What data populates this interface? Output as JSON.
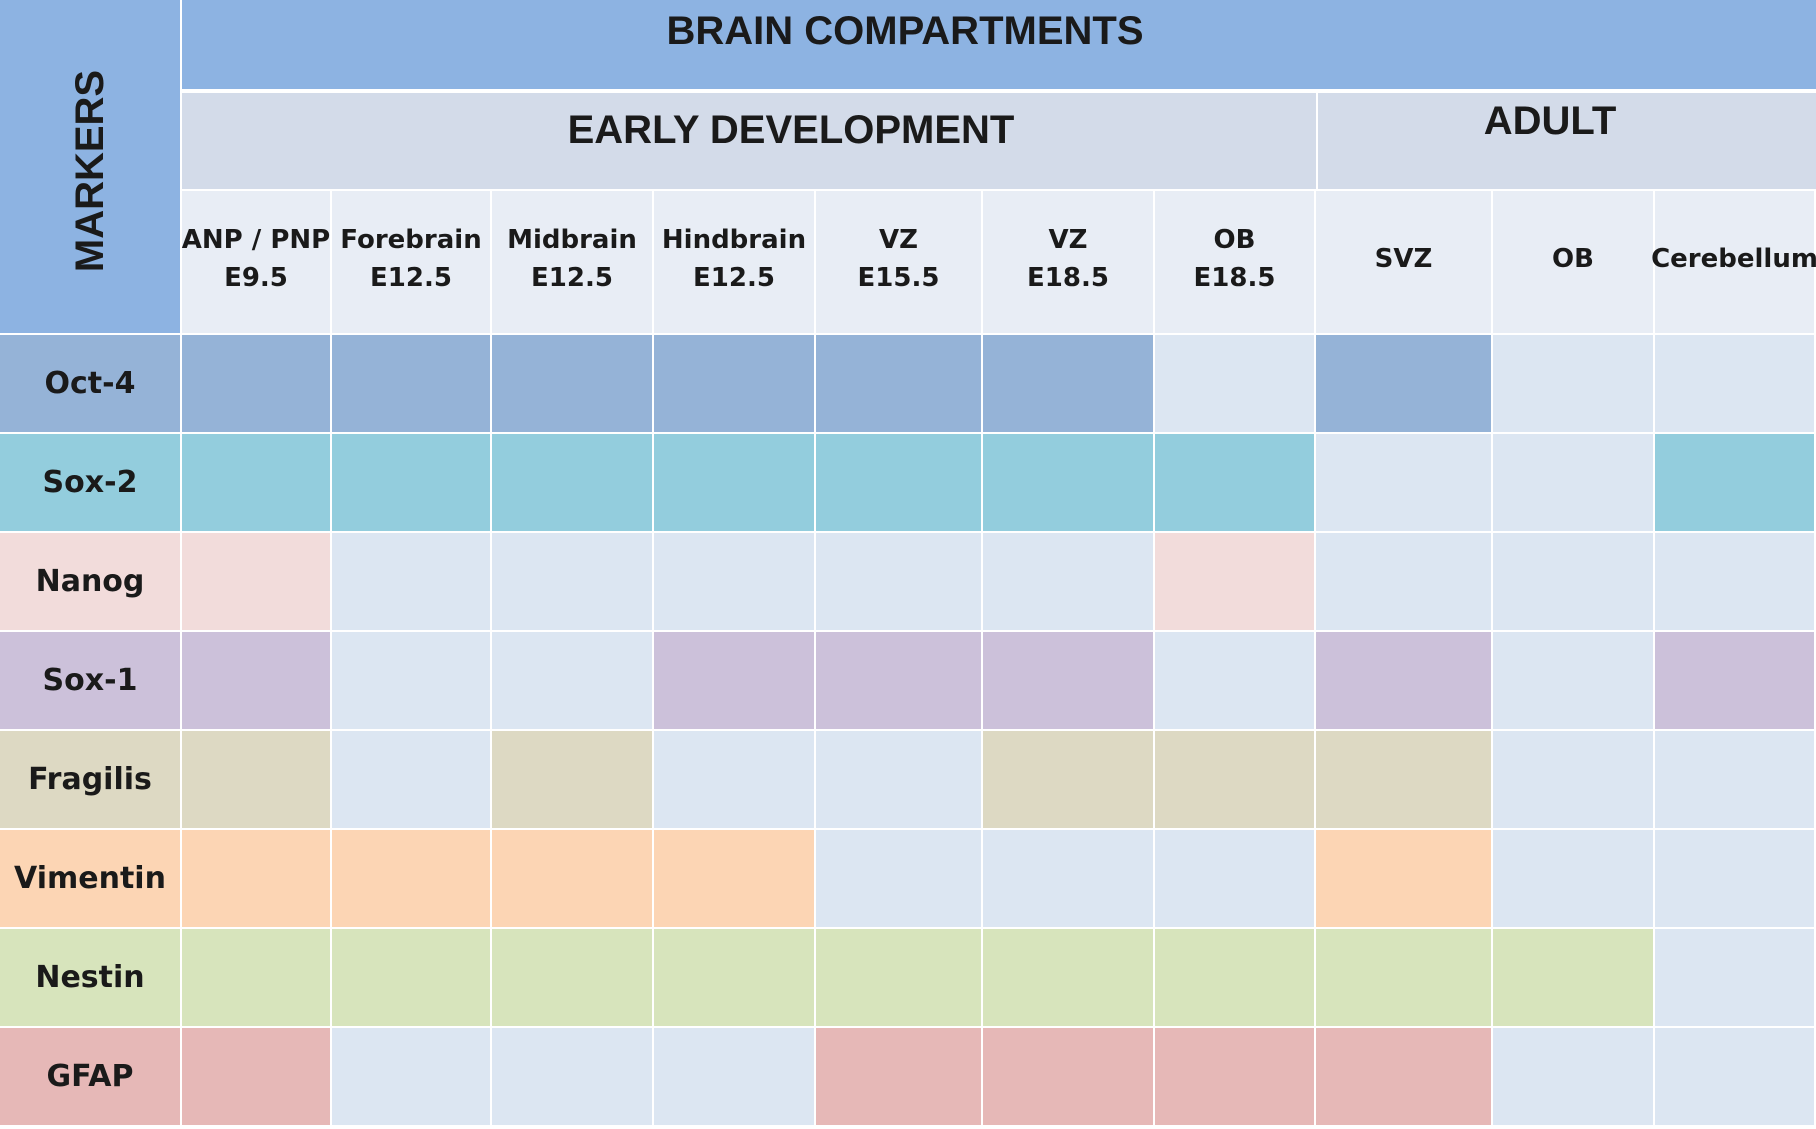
{
  "title": "BRAIN COMPARTMENTS",
  "markers_label": "MARKERS",
  "groups": [
    {
      "label": "EARLY DEVELOPMENT"
    },
    {
      "label": "ADULT"
    }
  ],
  "columns": [
    {
      "line1": "ANP / PNP",
      "line2": "E9.5"
    },
    {
      "line1": "Forebrain",
      "line2": "E12.5"
    },
    {
      "line1": "Midbrain",
      "line2": "E12.5"
    },
    {
      "line1": "Hindbrain",
      "line2": "E12.5"
    },
    {
      "line1": "VZ",
      "line2": "E15.5"
    },
    {
      "line1": "VZ",
      "line2": "E18.5"
    },
    {
      "line1": "OB",
      "line2": "E18.5"
    },
    {
      "line1": "SVZ",
      "line2": ""
    },
    {
      "line1": "OB",
      "line2": ""
    },
    {
      "line1": "Cerebellum",
      "line2": ""
    }
  ],
  "colors": {
    "header_blue": "#8db3e2",
    "group_gray": "#d3dbe9",
    "column_header": "#e8edf5",
    "empty_cell": "#dce6f2"
  },
  "rows": [
    {
      "name": "Oct-4",
      "color": "#95b3d7",
      "label_color": "#95b3d7",
      "expr": [
        1,
        1,
        1,
        1,
        1,
        1,
        0,
        1,
        0,
        0
      ]
    },
    {
      "name": "Sox-2",
      "color": "#93cddd",
      "label_color": "#93cddd",
      "expr": [
        1,
        1,
        1,
        1,
        1,
        1,
        1,
        0,
        0,
        1
      ]
    },
    {
      "name": "Nanog",
      "color": "#f2dcdb",
      "label_color": "#f2dcdb",
      "expr": [
        1,
        0,
        0,
        0,
        0,
        0,
        1,
        0,
        0,
        0
      ]
    },
    {
      "name": "Sox-1",
      "color": "#ccc1da",
      "label_color": "#ccc1da",
      "expr": [
        1,
        0,
        0,
        1,
        1,
        1,
        0,
        1,
        0,
        1
      ]
    },
    {
      "name": "Fragilis",
      "color": "#ddd9c3",
      "label_color": "#ddd9c3",
      "expr": [
        1,
        0,
        1,
        0,
        0,
        1,
        1,
        1,
        0,
        0
      ]
    },
    {
      "name": "Vimentin",
      "color": "#fcd5b4",
      "label_color": "#fcd5b4",
      "expr": [
        1,
        1,
        1,
        1,
        0,
        0,
        0,
        1,
        0,
        0
      ]
    },
    {
      "name": "Nestin",
      "color": "#d7e4bc",
      "label_color": "#d7e4bc",
      "expr": [
        1,
        1,
        1,
        1,
        1,
        1,
        1,
        1,
        1,
        0
      ]
    },
    {
      "name": "GFAP",
      "color": "#e6b8b7",
      "label_color": "#e6b8b7",
      "expr": [
        1,
        0,
        0,
        0,
        1,
        1,
        1,
        1,
        0,
        0
      ]
    }
  ]
}
